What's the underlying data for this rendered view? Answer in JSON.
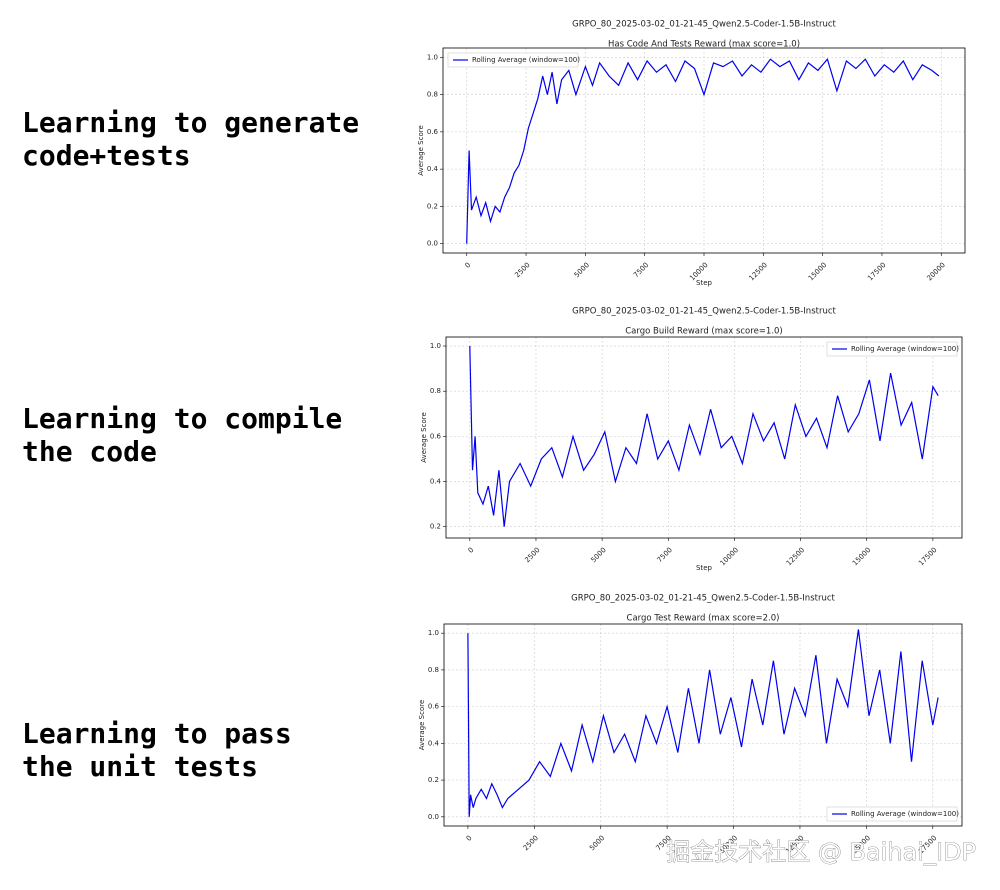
{
  "side_labels": [
    [
      "Learning to generate",
      "code+tests"
    ],
    [
      "Learning to compile",
      "the code"
    ],
    [
      "Learning to pass",
      "the unit tests"
    ]
  ],
  "watermark": "掘金技术社区 @ Baihai_IDP",
  "chart_data": [
    {
      "type": "line",
      "title": "GRPO_80_2025-03-02_01-21-45_Qwen2.5-Coder-1.5B-Instruct",
      "subtitle": "Has Code And Tests Reward (max score=1.0)",
      "xlabel": "Step",
      "ylabel": "Average Score",
      "grid": true,
      "legend": "upper left",
      "xlim": [
        -1000,
        21000
      ],
      "xticks": [
        0,
        2500,
        5000,
        7500,
        10000,
        12500,
        15000,
        17500,
        20000
      ],
      "ylim": [
        -0.05,
        1.05
      ],
      "yticks": [
        {
          "value": 0,
          "label": "0.0"
        },
        0.2,
        0.4,
        0.6,
        0.8,
        {
          "value": 1,
          "label": "1.0"
        }
      ],
      "x": [
        0,
        100,
        200,
        400,
        600,
        800,
        1000,
        1200,
        1400,
        1600,
        1800,
        2000,
        2200,
        2400,
        2600,
        2800,
        3000,
        3200,
        3400,
        3600,
        3800,
        4000,
        4300,
        4600,
        5000,
        5300,
        5600,
        6000,
        6400,
        6800,
        7200,
        7600,
        8000,
        8400,
        8800,
        9200,
        9600,
        10000,
        10400,
        10800,
        11200,
        11600,
        12000,
        12400,
        12800,
        13200,
        13600,
        14000,
        14400,
        14800,
        15200,
        15600,
        16000,
        16400,
        16800,
        17200,
        17600,
        18000,
        18400,
        18800,
        19200,
        19600,
        19900
      ],
      "series": [
        {
          "name": "Rolling Average (window=100)",
          "color": "#0000ee",
          "values": [
            0.0,
            0.5,
            0.18,
            0.25,
            0.15,
            0.22,
            0.12,
            0.2,
            0.17,
            0.25,
            0.3,
            0.38,
            0.42,
            0.5,
            0.62,
            0.7,
            0.78,
            0.9,
            0.8,
            0.92,
            0.75,
            0.88,
            0.93,
            0.8,
            0.95,
            0.85,
            0.97,
            0.9,
            0.85,
            0.97,
            0.88,
            0.98,
            0.92,
            0.96,
            0.87,
            0.98,
            0.94,
            0.8,
            0.97,
            0.95,
            0.98,
            0.9,
            0.96,
            0.92,
            0.99,
            0.95,
            0.98,
            0.88,
            0.97,
            0.93,
            0.99,
            0.82,
            0.98,
            0.94,
            0.99,
            0.9,
            0.96,
            0.92,
            0.98,
            0.88,
            0.96,
            0.93,
            0.9
          ]
        }
      ]
    },
    {
      "type": "line",
      "title": "GRPO_80_2025-03-02_01-21-45_Qwen2.5-Coder-1.5B-Instruct",
      "subtitle": "Cargo Build Reward (max score=1.0)",
      "xlabel": "Step",
      "ylabel": "Average Score",
      "grid": true,
      "legend": "upper right",
      "xlim": [
        -900,
        18600
      ],
      "xticks": [
        0,
        2500,
        5000,
        7500,
        10000,
        12500,
        15000,
        17500
      ],
      "ylim": [
        0.15,
        1.04
      ],
      "yticks": [
        0.2,
        0.4,
        0.6,
        0.8,
        {
          "value": 1,
          "label": "1.0"
        }
      ],
      "x": [
        0,
        100,
        200,
        300,
        500,
        700,
        900,
        1100,
        1300,
        1500,
        1900,
        2300,
        2700,
        3100,
        3500,
        3900,
        4300,
        4700,
        5100,
        5500,
        5900,
        6300,
        6700,
        7100,
        7500,
        7900,
        8300,
        8700,
        9100,
        9500,
        9900,
        10300,
        10700,
        11100,
        11500,
        11900,
        12300,
        12700,
        13100,
        13500,
        13900,
        14300,
        14700,
        15100,
        15500,
        15900,
        16300,
        16700,
        17100,
        17500,
        17700
      ],
      "series": [
        {
          "name": "Rolling Average (window=100)",
          "color": "#0000ee",
          "values": [
            1.0,
            0.45,
            0.6,
            0.35,
            0.3,
            0.38,
            0.25,
            0.45,
            0.2,
            0.4,
            0.48,
            0.38,
            0.5,
            0.55,
            0.42,
            0.6,
            0.45,
            0.52,
            0.62,
            0.4,
            0.55,
            0.48,
            0.7,
            0.5,
            0.58,
            0.45,
            0.65,
            0.52,
            0.72,
            0.55,
            0.6,
            0.48,
            0.7,
            0.58,
            0.66,
            0.5,
            0.74,
            0.6,
            0.68,
            0.55,
            0.78,
            0.62,
            0.7,
            0.85,
            0.58,
            0.88,
            0.65,
            0.75,
            0.5,
            0.82,
            0.78
          ]
        }
      ]
    },
    {
      "type": "line",
      "title": "GRPO_80_2025-03-02_01-21-45_Qwen2.5-Coder-1.5B-Instruct",
      "subtitle": "Cargo Test Reward (max score=2.0)",
      "ylabel": "Average Score",
      "grid": true,
      "legend": "lower right",
      "xlim": [
        -900,
        18600
      ],
      "xticks": [
        0,
        2500,
        5000,
        7500,
        10000,
        12500,
        15000,
        17500
      ],
      "ylim": [
        -0.05,
        1.05
      ],
      "yticks": [
        {
          "value": 0,
          "label": "0.0"
        },
        0.2,
        0.4,
        0.6,
        0.8,
        {
          "value": 1,
          "label": "1.0"
        }
      ],
      "x": [
        0,
        50,
        100,
        200,
        300,
        500,
        700,
        900,
        1100,
        1300,
        1500,
        1900,
        2300,
        2700,
        3100,
        3500,
        3900,
        4300,
        4700,
        5100,
        5500,
        5900,
        6300,
        6700,
        7100,
        7500,
        7900,
        8300,
        8700,
        9100,
        9500,
        9900,
        10300,
        10700,
        11100,
        11500,
        11900,
        12300,
        12700,
        13100,
        13500,
        13900,
        14300,
        14700,
        15100,
        15500,
        15900,
        16300,
        16700,
        17100,
        17500,
        17700
      ],
      "series": [
        {
          "name": "Rolling Average (window=100)",
          "color": "#0000ee",
          "values": [
            1.0,
            0.0,
            0.12,
            0.05,
            0.1,
            0.15,
            0.1,
            0.18,
            0.12,
            0.05,
            0.1,
            0.15,
            0.2,
            0.3,
            0.22,
            0.4,
            0.25,
            0.5,
            0.3,
            0.55,
            0.35,
            0.45,
            0.3,
            0.55,
            0.4,
            0.6,
            0.35,
            0.7,
            0.4,
            0.8,
            0.45,
            0.65,
            0.38,
            0.75,
            0.5,
            0.85,
            0.45,
            0.7,
            0.55,
            0.88,
            0.4,
            0.75,
            0.6,
            1.02,
            0.55,
            0.8,
            0.4,
            0.9,
            0.3,
            0.85,
            0.5,
            0.65
          ]
        }
      ]
    }
  ]
}
